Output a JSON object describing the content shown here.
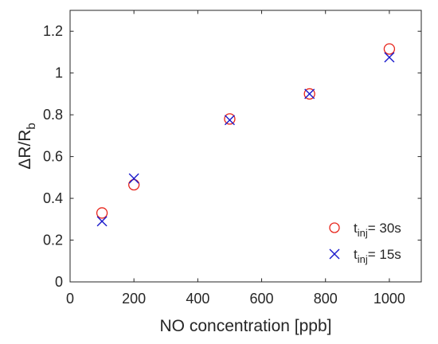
{
  "chart_data": {
    "type": "scatter",
    "title": "",
    "xlabel": "NO concentration [ppb]",
    "ylabel": {
      "main": "ΔR/R",
      "sub": "b"
    },
    "xlim": [
      0,
      1100
    ],
    "ylim": [
      0,
      1.3
    ],
    "x_ticks": [
      0,
      200,
      400,
      600,
      800,
      1000
    ],
    "x_tick_labels": [
      "0",
      "200",
      "400",
      "600",
      "800",
      "1000"
    ],
    "y_ticks": [
      0,
      0.2,
      0.4,
      0.6,
      0.8,
      1.0,
      1.2
    ],
    "y_tick_labels": [
      "0",
      "0.2",
      "0.4",
      "0.6",
      "0.8",
      "1",
      "1.2"
    ],
    "grid": false,
    "legend_position": "bottom-right",
    "series": [
      {
        "name": {
          "main": "t",
          "sub": "inj",
          "tail": "= 30s"
        },
        "marker": "circle",
        "color": "#e8261c",
        "x": [
          100,
          200,
          500,
          750,
          1000
        ],
        "y": [
          0.33,
          0.465,
          0.78,
          0.9,
          1.115
        ]
      },
      {
        "name": {
          "main": "t",
          "sub": "inj",
          "tail": "= 15s"
        },
        "marker": "cross",
        "color": "#1a1acc",
        "x": [
          100,
          200,
          500,
          750,
          1000
        ],
        "y": [
          0.29,
          0.495,
          0.775,
          0.9,
          1.075
        ]
      }
    ]
  }
}
